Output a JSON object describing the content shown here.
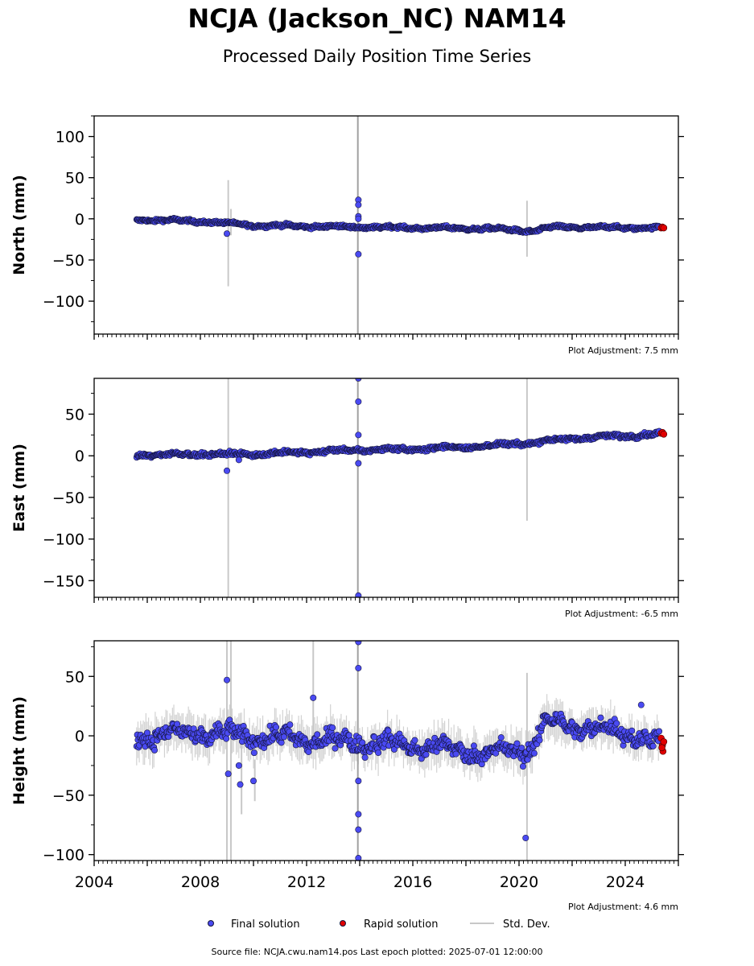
{
  "title": "NCJA (Jackson_NC) NAM14",
  "subtitle": "Processed Daily Position Time Series",
  "footer": "Source file: NCJA.cwu.nam14.pos  Last epoch plotted: 2025-07-01 12:00:00",
  "colors": {
    "final": "#4a4af2",
    "rapid": "#e00000",
    "stddev": "#c8c8c8",
    "edge": "#14143c"
  },
  "legend": {
    "final": "Final solution",
    "rapid": "Rapid solution",
    "stddev": "Std. Dev."
  },
  "chart_data": [
    {
      "type": "scatter",
      "component": "north",
      "ylabel": "North (mm)",
      "adjustment": "Plot Adjustment: 7.5 mm",
      "xlim": [
        2004,
        2026
      ],
      "ylim": [
        -140,
        125
      ],
      "yticks": [
        100,
        50,
        0,
        -50,
        -100
      ],
      "ytick_labels": [
        "100",
        "50",
        "0",
        "−50",
        "−100"
      ],
      "trend": {
        "x": [
          2005.6,
          2008,
          2010,
          2014,
          2019,
          2020.5,
          2021.3,
          2025.3
        ],
        "y": [
          -1,
          -3,
          -8,
          -10,
          -12,
          -15,
          -10,
          -11
        ],
        "noise": 2
      },
      "spread": 2,
      "outliers": [
        {
          "x": 2009.0,
          "y": -18
        },
        {
          "x": 2013.95,
          "y": 23
        },
        {
          "x": 2013.95,
          "y": 17
        },
        {
          "x": 2013.95,
          "y": 3
        },
        {
          "x": 2013.95,
          "y": 0
        },
        {
          "x": 2013.95,
          "y": -43
        }
      ],
      "errorbars": [
        {
          "x": 2009.05,
          "y1": -82,
          "y2": 47
        },
        {
          "x": 2009.15,
          "y1": -20,
          "y2": 12
        },
        {
          "x": 2013.93,
          "y1": -140,
          "y2": 125
        },
        {
          "x": 2020.3,
          "y1": -46,
          "y2": 22
        }
      ],
      "rapid": [
        {
          "x": 2025.35,
          "y": -11
        },
        {
          "x": 2025.4,
          "y": -10
        },
        {
          "x": 2025.45,
          "y": -11
        }
      ]
    },
    {
      "type": "scatter",
      "component": "east",
      "ylabel": "East (mm)",
      "adjustment": "Plot Adjustment: -6.5 mm",
      "xlim": [
        2004,
        2026
      ],
      "ylim": [
        -170,
        93
      ],
      "yticks": [
        50,
        0,
        -50,
        -100,
        -150
      ],
      "ytick_labels": [
        "50",
        "0",
        "−50",
        "−100",
        "−150"
      ],
      "trend": {
        "x": [
          2005.6,
          2008,
          2010,
          2014,
          2016,
          2019,
          2020.5,
          2022,
          2024,
          2025.3
        ],
        "y": [
          1,
          2,
          2,
          7,
          8,
          12,
          16,
          21,
          24,
          26
        ],
        "noise": 2.5
      },
      "spread": 2,
      "outliers": [
        {
          "x": 2009.0,
          "y": -18
        },
        {
          "x": 2009.45,
          "y": -5
        },
        {
          "x": 2013.95,
          "y": 93
        },
        {
          "x": 2013.95,
          "y": 65
        },
        {
          "x": 2013.95,
          "y": 25
        },
        {
          "x": 2013.95,
          "y": -9
        },
        {
          "x": 2013.95,
          "y": -168
        }
      ],
      "errorbars": [
        {
          "x": 2009.05,
          "y1": -170,
          "y2": 93
        },
        {
          "x": 2013.93,
          "y1": -170,
          "y2": 93
        },
        {
          "x": 2020.3,
          "y1": -78,
          "y2": 93
        }
      ],
      "rapid": [
        {
          "x": 2025.35,
          "y": 27
        },
        {
          "x": 2025.4,
          "y": 28
        },
        {
          "x": 2025.45,
          "y": 26
        }
      ]
    },
    {
      "type": "scatter",
      "component": "height",
      "ylabel": "Height (mm)",
      "adjustment": "Plot Adjustment: 4.6 mm",
      "xlim": [
        2004,
        2026
      ],
      "xticks": [
        2004,
        2008,
        2012,
        2016,
        2020,
        2024
      ],
      "ylim": [
        -105,
        80
      ],
      "yticks": [
        50,
        0,
        -50,
        -100
      ],
      "ytick_labels": [
        "50",
        "0",
        "−50",
        "−100"
      ],
      "trend": {
        "x": [
          2005.6,
          2008,
          2012,
          2016,
          2019,
          2020.5,
          2021,
          2022,
          2024,
          2025.3
        ],
        "y": [
          0,
          2,
          -3,
          -8,
          -15,
          -10,
          12,
          8,
          3,
          -5
        ],
        "noise": 8
      },
      "spread": 14,
      "outliers": [
        {
          "x": 2009.0,
          "y": 47
        },
        {
          "x": 2009.05,
          "y": -32
        },
        {
          "x": 2009.45,
          "y": -25
        },
        {
          "x": 2009.5,
          "y": -41
        },
        {
          "x": 2010.0,
          "y": -38
        },
        {
          "x": 2012.25,
          "y": 32
        },
        {
          "x": 2013.95,
          "y": 79
        },
        {
          "x": 2013.95,
          "y": 57
        },
        {
          "x": 2013.95,
          "y": -38
        },
        {
          "x": 2013.95,
          "y": -66
        },
        {
          "x": 2013.95,
          "y": -79
        },
        {
          "x": 2013.95,
          "y": -103
        },
        {
          "x": 2020.25,
          "y": -86
        },
        {
          "x": 2024.6,
          "y": 26
        }
      ],
      "errorbars": [
        {
          "x": 2009.0,
          "y1": -105,
          "y2": 80
        },
        {
          "x": 2009.15,
          "y1": -105,
          "y2": 80
        },
        {
          "x": 2009.55,
          "y1": -66,
          "y2": 2
        },
        {
          "x": 2010.05,
          "y1": -55,
          "y2": -20
        },
        {
          "x": 2012.25,
          "y1": -5,
          "y2": 80
        },
        {
          "x": 2013.93,
          "y1": -105,
          "y2": 80
        },
        {
          "x": 2020.3,
          "y1": -105,
          "y2": 53
        }
      ],
      "rapid": [
        {
          "x": 2025.35,
          "y": -2
        },
        {
          "x": 2025.4,
          "y": -8
        },
        {
          "x": 2025.42,
          "y": -13
        },
        {
          "x": 2025.45,
          "y": -5
        },
        {
          "x": 2025.38,
          "y": -10
        }
      ]
    }
  ]
}
